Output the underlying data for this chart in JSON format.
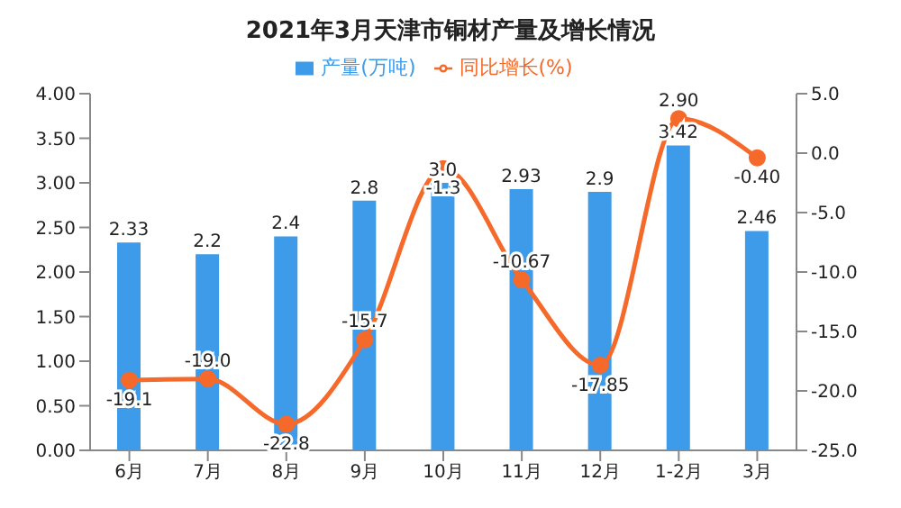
{
  "chart_data": {
    "type": "bar",
    "title": "2021年3月天津市铜材产量及增长情况",
    "categories": [
      "6月",
      "7月",
      "8月",
      "9月",
      "10月",
      "11月",
      "12月",
      "1-2月",
      "3月"
    ],
    "series": [
      {
        "name": "产量(万吨)",
        "color": "#3d9be9",
        "values": [
          2.33,
          2.2,
          2.4,
          2.8,
          3.0,
          2.93,
          2.9,
          3.42,
          2.46
        ],
        "value_labels": [
          "2.33",
          "2.2",
          "2.4",
          "2.8",
          "3.0",
          "2.93",
          "2.9",
          "3.42",
          "2.46"
        ]
      },
      {
        "name": "同比增长(%)",
        "type": "line",
        "axis": "y2",
        "color": "#f5692a",
        "marker": "circle",
        "values": [
          -19.1,
          -19.0,
          -22.8,
          -15.7,
          -1.3,
          -10.67,
          -17.85,
          2.9,
          -0.4
        ],
        "value_labels": [
          "-19.1",
          "-19.0",
          "-22.8",
          "-15.7",
          "-1.3",
          "-10.67",
          "-17.85",
          "2.90",
          "-0.40"
        ]
      }
    ],
    "ylim": [
      0,
      4
    ],
    "yticks": [
      {
        "value": 0,
        "label": "0.00"
      },
      {
        "value": 0.5,
        "label": "0.50"
      },
      {
        "value": 1,
        "label": "1.00"
      },
      {
        "value": 1.5,
        "label": "1.50"
      },
      {
        "value": 2,
        "label": "2.00"
      },
      {
        "value": 2.5,
        "label": "2.50"
      },
      {
        "value": 3,
        "label": "3.00"
      },
      {
        "value": 3.5,
        "label": "3.50"
      },
      {
        "value": 4,
        "label": "4.00"
      }
    ],
    "y2lim": [
      -25,
      5
    ],
    "y2ticks": [
      {
        "value": -25,
        "label": "-25.0"
      },
      {
        "value": -20,
        "label": "-20.0"
      },
      {
        "value": -15,
        "label": "-15.0"
      },
      {
        "value": -10,
        "label": "-10.0"
      },
      {
        "value": -5,
        "label": "-5.0"
      },
      {
        "value": 0,
        "label": "0.0"
      },
      {
        "value": 5,
        "label": "5.0"
      }
    ],
    "legend": "top"
  }
}
